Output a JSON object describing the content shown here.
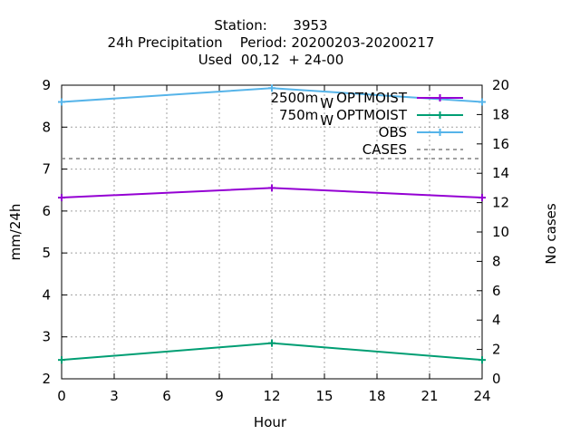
{
  "chart_data": {
    "type": "line",
    "title_lines": [
      "Station:      3953",
      "24h Precipitation    Period: 20200203-20200217",
      "Used  00,12  + 24-00"
    ],
    "xlabel": "Hour",
    "ylabel": "mm/24h",
    "y2label": "No cases",
    "xlim": [
      0,
      24
    ],
    "ylim": [
      2,
      9
    ],
    "y2lim": [
      0,
      20
    ],
    "x_ticks": [
      0,
      3,
      6,
      9,
      12,
      15,
      18,
      21,
      24
    ],
    "y_ticks": [
      2,
      3,
      4,
      5,
      6,
      7,
      8,
      9
    ],
    "y2_ticks": [
      0,
      2,
      4,
      6,
      8,
      10,
      12,
      14,
      16,
      18,
      20
    ],
    "grid": true,
    "legend_position": "top-right",
    "series": [
      {
        "name": "2500m",
        "name_sub": "W",
        "name_suffix": "OPTMOIST",
        "color": "#9400d3",
        "axis": "y",
        "marker": "cross",
        "dash": "",
        "x": [
          0,
          12,
          24
        ],
        "values": [
          6.32,
          6.55,
          6.32
        ]
      },
      {
        "name": "750m",
        "name_sub": "W",
        "name_suffix": "OPTMOIST",
        "color": "#009e73",
        "axis": "y",
        "marker": "cross",
        "dash": "",
        "x": [
          0,
          12,
          24
        ],
        "values": [
          2.45,
          2.85,
          2.45
        ]
      },
      {
        "name": "OBS",
        "name_sub": "",
        "name_suffix": "",
        "color": "#56b4e9",
        "axis": "y",
        "marker": "cross",
        "dash": "",
        "x": [
          0,
          12,
          24
        ],
        "values": [
          8.6,
          8.93,
          8.6
        ]
      },
      {
        "name": "CASES",
        "name_sub": "",
        "name_suffix": "",
        "color": "#808080",
        "axis": "y2",
        "marker": "none",
        "dash": "4,4",
        "x": [
          0,
          24
        ],
        "values": [
          15,
          15
        ]
      }
    ]
  }
}
